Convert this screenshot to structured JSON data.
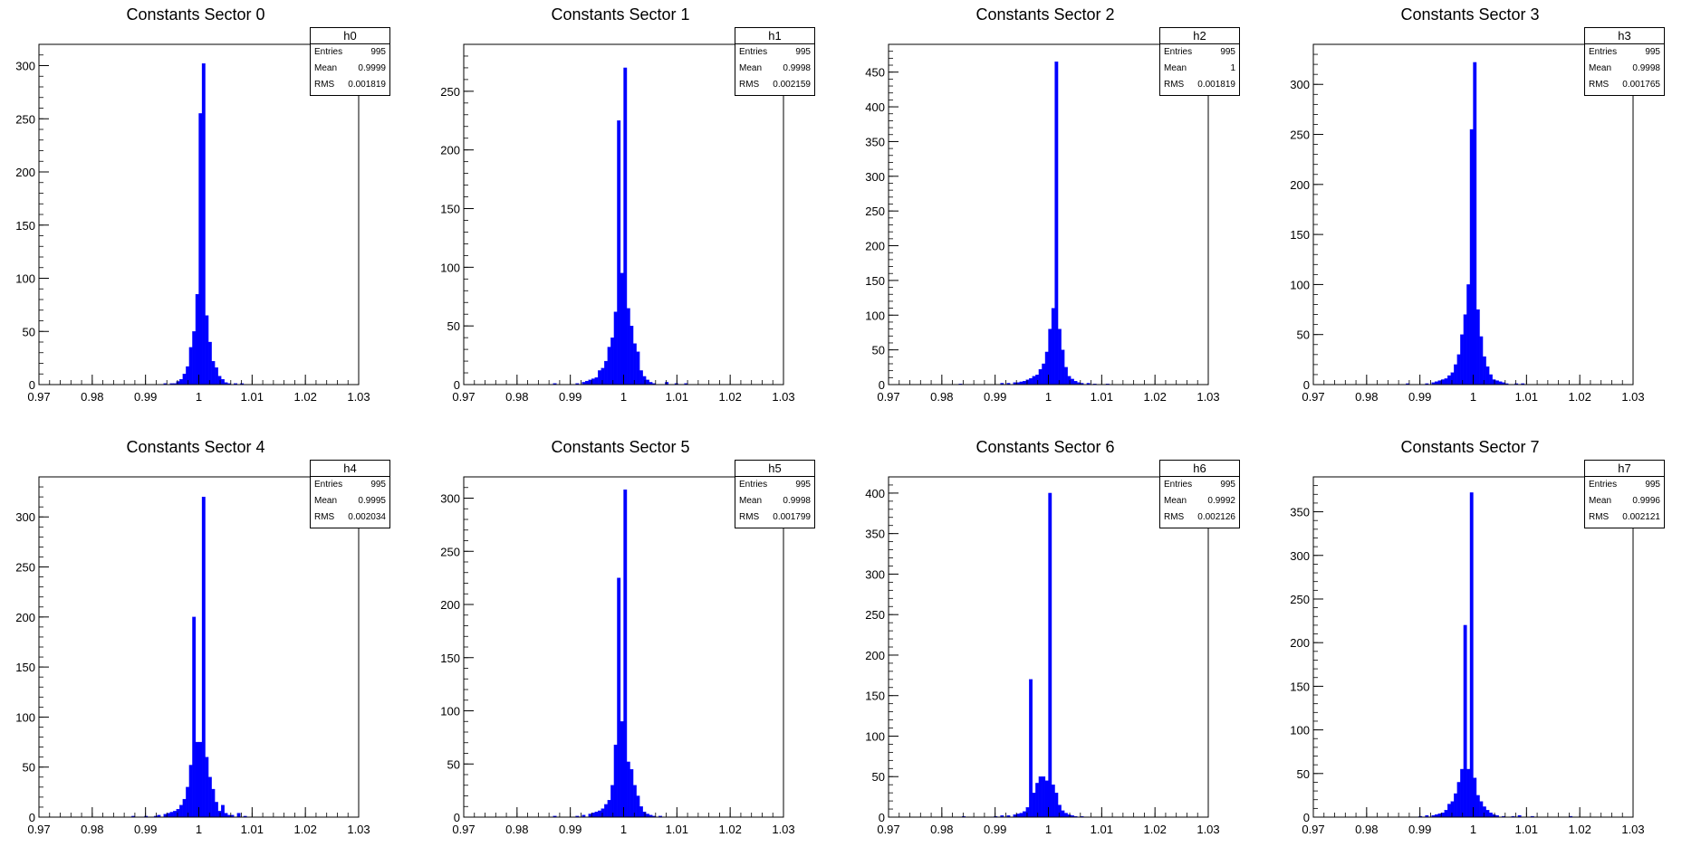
{
  "canvas": {
    "background": "#ffffff"
  },
  "colors": {
    "fill": "#0000ff",
    "axis": "#000000"
  },
  "stat_labels": {
    "entries": "Entries",
    "mean": "Mean",
    "rms": "RMS"
  },
  "chart_data": [
    {
      "type": "bar",
      "title": "Constants Sector 0",
      "name": "h0",
      "stats": {
        "entries": "995",
        "mean": "0.9999",
        "rms": "0.001819"
      },
      "xlim": [
        0.97,
        1.03
      ],
      "ylim": [
        0,
        320
      ],
      "yticks": [
        0,
        50,
        100,
        150,
        200,
        250,
        300
      ],
      "xticks": [
        "0.97",
        "0.98",
        "0.99",
        "1",
        "1.01",
        "1.02",
        "1.03"
      ],
      "bin_width": 0.0006,
      "bins": [
        [
          0.9934,
          1
        ],
        [
          0.9946,
          1
        ],
        [
          0.9952,
          1
        ],
        [
          0.9958,
          3
        ],
        [
          0.9964,
          5
        ],
        [
          0.997,
          10
        ],
        [
          0.9976,
          17
        ],
        [
          0.9982,
          35
        ],
        [
          0.9988,
          50
        ],
        [
          0.9994,
          85
        ],
        [
          1.0,
          255
        ],
        [
          1.0006,
          302
        ],
        [
          1.0012,
          65
        ],
        [
          1.0018,
          40
        ],
        [
          1.0024,
          22
        ],
        [
          1.003,
          16
        ],
        [
          1.0036,
          8
        ],
        [
          1.0042,
          5
        ],
        [
          1.0048,
          2
        ],
        [
          1.0054,
          1
        ],
        [
          1.0066,
          1
        ],
        [
          1.0078,
          1
        ]
      ]
    },
    {
      "type": "bar",
      "title": "Constants Sector 1",
      "name": "h1",
      "stats": {
        "entries": "995",
        "mean": "0.9998",
        "rms": "0.002159"
      },
      "xlim": [
        0.97,
        1.03
      ],
      "ylim": [
        0,
        290
      ],
      "yticks": [
        0,
        50,
        100,
        150,
        200,
        250
      ],
      "xticks": [
        "0.97",
        "0.98",
        "0.99",
        "1",
        "1.01",
        "1.02",
        "1.03"
      ],
      "bin_width": 0.0006,
      "bins": [
        [
          0.9868,
          1
        ],
        [
          0.991,
          1
        ],
        [
          0.9922,
          2
        ],
        [
          0.9928,
          3
        ],
        [
          0.9934,
          4
        ],
        [
          0.994,
          5
        ],
        [
          0.9946,
          6
        ],
        [
          0.9952,
          12
        ],
        [
          0.9958,
          14
        ],
        [
          0.9964,
          20
        ],
        [
          0.997,
          32
        ],
        [
          0.9976,
          40
        ],
        [
          0.9982,
          62
        ],
        [
          0.9988,
          225
        ],
        [
          0.9994,
          95
        ],
        [
          1.0,
          270
        ],
        [
          1.0006,
          65
        ],
        [
          1.0012,
          50
        ],
        [
          1.0018,
          35
        ],
        [
          1.0024,
          28
        ],
        [
          1.003,
          12
        ],
        [
          1.0036,
          7
        ],
        [
          1.0042,
          4
        ],
        [
          1.0048,
          2
        ],
        [
          1.0054,
          1
        ],
        [
          1.0078,
          2
        ],
        [
          1.0096,
          1
        ],
        [
          1.0114,
          1
        ]
      ]
    },
    {
      "type": "bar",
      "title": "Constants Sector 2",
      "name": "h2",
      "stats": {
        "entries": "995",
        "mean": "1",
        "rms": "0.001819"
      },
      "xlim": [
        0.97,
        1.03
      ],
      "ylim": [
        0,
        490
      ],
      "yticks": [
        0,
        50,
        100,
        150,
        200,
        250,
        300,
        350,
        400,
        450
      ],
      "xticks": [
        "0.97",
        "0.98",
        "0.99",
        "1",
        "1.01",
        "1.02",
        "1.03"
      ],
      "bin_width": 0.0006,
      "bins": [
        [
          0.9832,
          1
        ],
        [
          0.991,
          2
        ],
        [
          0.9922,
          2
        ],
        [
          0.9934,
          3
        ],
        [
          0.994,
          3
        ],
        [
          0.9946,
          4
        ],
        [
          0.9952,
          5
        ],
        [
          0.9958,
          7
        ],
        [
          0.9964,
          9
        ],
        [
          0.997,
          12
        ],
        [
          0.9976,
          14
        ],
        [
          0.9982,
          22
        ],
        [
          0.9988,
          30
        ],
        [
          0.9994,
          47
        ],
        [
          1.0,
          80
        ],
        [
          1.0006,
          110
        ],
        [
          1.0012,
          465
        ],
        [
          1.0018,
          80
        ],
        [
          1.0024,
          50
        ],
        [
          1.003,
          25
        ],
        [
          1.0036,
          12
        ],
        [
          1.0042,
          8
        ],
        [
          1.0048,
          5
        ],
        [
          1.0054,
          3
        ],
        [
          1.006,
          2
        ],
        [
          1.0072,
          2
        ],
        [
          1.0084,
          1
        ],
        [
          1.0108,
          1
        ]
      ]
    },
    {
      "type": "bar",
      "title": "Constants Sector 3",
      "name": "h3",
      "stats": {
        "entries": "995",
        "mean": "0.9998",
        "rms": "0.001765"
      },
      "xlim": [
        0.97,
        1.03
      ],
      "ylim": [
        0,
        340
      ],
      "yticks": [
        0,
        50,
        100,
        150,
        200,
        250,
        300
      ],
      "xticks": [
        "0.97",
        "0.98",
        "0.99",
        "1",
        "1.01",
        "1.02",
        "1.03"
      ],
      "bin_width": 0.0006,
      "bins": [
        [
          0.9874,
          1
        ],
        [
          0.991,
          1
        ],
        [
          0.9922,
          2
        ],
        [
          0.9928,
          3
        ],
        [
          0.9934,
          4
        ],
        [
          0.994,
          5
        ],
        [
          0.9946,
          6
        ],
        [
          0.9952,
          9
        ],
        [
          0.9958,
          12
        ],
        [
          0.9964,
          20
        ],
        [
          0.997,
          30
        ],
        [
          0.9976,
          50
        ],
        [
          0.9982,
          70
        ],
        [
          0.9988,
          100
        ],
        [
          0.9994,
          255
        ],
        [
          1.0,
          322
        ],
        [
          1.0006,
          75
        ],
        [
          1.0012,
          48
        ],
        [
          1.0018,
          28
        ],
        [
          1.0024,
          18
        ],
        [
          1.003,
          10
        ],
        [
          1.0036,
          5
        ],
        [
          1.0042,
          4
        ],
        [
          1.0048,
          3
        ],
        [
          1.0054,
          2
        ],
        [
          1.006,
          1
        ],
        [
          1.0078,
          1
        ],
        [
          1.009,
          1
        ]
      ]
    },
    {
      "type": "bar",
      "title": "Constants Sector 4",
      "name": "h4",
      "stats": {
        "entries": "995",
        "mean": "0.9995",
        "rms": "0.002034"
      },
      "xlim": [
        0.97,
        1.03
      ],
      "ylim": [
        0,
        340
      ],
      "yticks": [
        0,
        50,
        100,
        150,
        200,
        250,
        300
      ],
      "xticks": [
        "0.97",
        "0.98",
        "0.99",
        "1",
        "1.01",
        "1.02",
        "1.03"
      ],
      "bin_width": 0.0006,
      "bins": [
        [
          0.9874,
          1
        ],
        [
          0.9898,
          1
        ],
        [
          0.9916,
          1
        ],
        [
          0.9922,
          2
        ],
        [
          0.9934,
          3
        ],
        [
          0.994,
          4
        ],
        [
          0.9946,
          5
        ],
        [
          0.9952,
          6
        ],
        [
          0.9958,
          8
        ],
        [
          0.9964,
          12
        ],
        [
          0.997,
          18
        ],
        [
          0.9976,
          30
        ],
        [
          0.9982,
          52
        ],
        [
          0.9988,
          200
        ],
        [
          0.9994,
          75
        ],
        [
          1.0,
          75
        ],
        [
          1.0006,
          320
        ],
        [
          1.0012,
          60
        ],
        [
          1.0018,
          40
        ],
        [
          1.0024,
          28
        ],
        [
          1.003,
          15
        ],
        [
          1.0036,
          6
        ],
        [
          1.0042,
          12
        ],
        [
          1.0048,
          4
        ],
        [
          1.0054,
          2
        ],
        [
          1.006,
          2
        ],
        [
          1.0072,
          4
        ],
        [
          1.0084,
          1
        ]
      ]
    },
    {
      "type": "bar",
      "title": "Constants Sector 5",
      "name": "h5",
      "stats": {
        "entries": "995",
        "mean": "0.9998",
        "rms": "0.001799"
      },
      "xlim": [
        0.97,
        1.03
      ],
      "ylim": [
        0,
        320
      ],
      "yticks": [
        0,
        50,
        100,
        150,
        200,
        250,
        300
      ],
      "xticks": [
        "0.97",
        "0.98",
        "0.99",
        "1",
        "1.01",
        "1.02",
        "1.03"
      ],
      "bin_width": 0.0006,
      "bins": [
        [
          0.9868,
          1
        ],
        [
          0.991,
          1
        ],
        [
          0.9922,
          2
        ],
        [
          0.9934,
          3
        ],
        [
          0.994,
          4
        ],
        [
          0.9946,
          5
        ],
        [
          0.9952,
          6
        ],
        [
          0.9958,
          8
        ],
        [
          0.9964,
          12
        ],
        [
          0.997,
          16
        ],
        [
          0.9976,
          30
        ],
        [
          0.9982,
          68
        ],
        [
          0.9988,
          225
        ],
        [
          0.9994,
          90
        ],
        [
          1.0,
          308
        ],
        [
          1.0006,
          52
        ],
        [
          1.0012,
          45
        ],
        [
          1.0018,
          30
        ],
        [
          1.0024,
          20
        ],
        [
          1.003,
          10
        ],
        [
          1.0036,
          5
        ],
        [
          1.0042,
          3
        ],
        [
          1.0048,
          2
        ],
        [
          1.0054,
          1
        ],
        [
          1.0066,
          1
        ]
      ]
    },
    {
      "type": "bar",
      "title": "Constants Sector 6",
      "name": "h6",
      "stats": {
        "entries": "995",
        "mean": "0.9992",
        "rms": "0.002126"
      },
      "xlim": [
        0.97,
        1.03
      ],
      "ylim": [
        0,
        420
      ],
      "yticks": [
        0,
        50,
        100,
        150,
        200,
        250,
        300,
        350,
        400
      ],
      "xticks": [
        "0.97",
        "0.98",
        "0.99",
        "1",
        "1.01",
        "1.02",
        "1.03"
      ],
      "bin_width": 0.0006,
      "bins": [
        [
          0.9838,
          1
        ],
        [
          0.9898,
          1
        ],
        [
          0.991,
          2
        ],
        [
          0.9922,
          2
        ],
        [
          0.9934,
          3
        ],
        [
          0.994,
          4
        ],
        [
          0.9946,
          5
        ],
        [
          0.9952,
          7
        ],
        [
          0.9958,
          12
        ],
        [
          0.9964,
          170
        ],
        [
          0.997,
          30
        ],
        [
          0.9976,
          42
        ],
        [
          0.9982,
          50
        ],
        [
          0.9988,
          50
        ],
        [
          0.9994,
          45
        ],
        [
          1.0,
          400
        ],
        [
          1.0006,
          40
        ],
        [
          1.0012,
          30
        ],
        [
          1.0018,
          15
        ],
        [
          1.0024,
          8
        ],
        [
          1.003,
          5
        ],
        [
          1.0036,
          3
        ],
        [
          1.0042,
          2
        ],
        [
          1.0048,
          1
        ],
        [
          1.006,
          1
        ]
      ]
    },
    {
      "type": "bar",
      "title": "Constants Sector 7",
      "name": "h7",
      "stats": {
        "entries": "995",
        "mean": "0.9996",
        "rms": "0.002121"
      },
      "xlim": [
        0.97,
        1.03
      ],
      "ylim": [
        0,
        390
      ],
      "yticks": [
        0,
        50,
        100,
        150,
        200,
        250,
        300,
        350
      ],
      "xticks": [
        "0.97",
        "0.98",
        "0.99",
        "1",
        "1.01",
        "1.02",
        "1.03"
      ],
      "bin_width": 0.0006,
      "bins": [
        [
          0.9898,
          1
        ],
        [
          0.991,
          2
        ],
        [
          0.9922,
          2
        ],
        [
          0.9928,
          3
        ],
        [
          0.9934,
          4
        ],
        [
          0.994,
          5
        ],
        [
          0.9946,
          8
        ],
        [
          0.9952,
          15
        ],
        [
          0.9958,
          18
        ],
        [
          0.9964,
          27
        ],
        [
          0.997,
          40
        ],
        [
          0.9976,
          55
        ],
        [
          0.9982,
          220
        ],
        [
          0.9988,
          55
        ],
        [
          0.9994,
          372
        ],
        [
          1.0,
          45
        ],
        [
          1.0006,
          25
        ],
        [
          1.0012,
          18
        ],
        [
          1.0018,
          12
        ],
        [
          1.0024,
          8
        ],
        [
          1.003,
          5
        ],
        [
          1.0036,
          3
        ],
        [
          1.0042,
          2
        ],
        [
          1.0054,
          1
        ],
        [
          1.0072,
          1
        ],
        [
          1.0084,
          2
        ],
        [
          1.0108,
          1
        ],
        [
          1.018,
          1
        ]
      ]
    }
  ]
}
